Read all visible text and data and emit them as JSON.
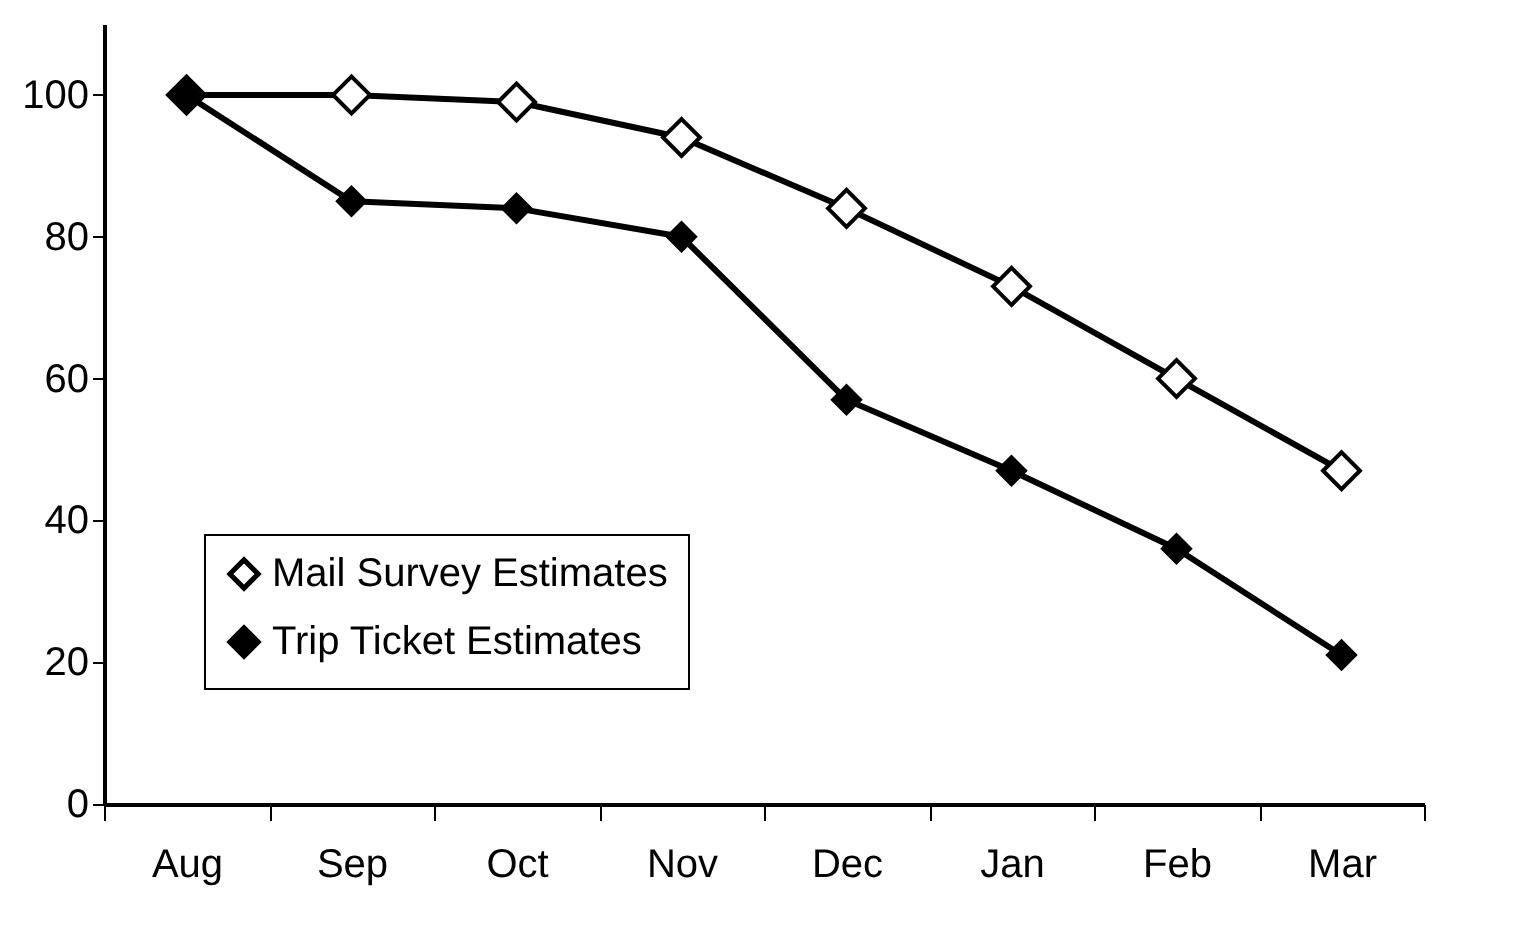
{
  "chart_data": {
    "type": "line",
    "categories": [
      "Aug",
      "Sep",
      "Oct",
      "Nov",
      "Dec",
      "Jan",
      "Feb",
      "Mar"
    ],
    "series": [
      {
        "name": "Mail Survey Estimates",
        "color": "#000000",
        "values": [
          100,
          100,
          99,
          94,
          84,
          73,
          60,
          47
        ]
      },
      {
        "name": "Trip Ticket Estimates",
        "color": "#000000",
        "values": [
          100,
          85,
          84,
          80,
          57,
          47,
          36,
          21
        ]
      }
    ],
    "ylim": [
      0,
      110
    ],
    "yticks": [
      0,
      20,
      40,
      60,
      80,
      100
    ],
    "grid": false,
    "legend": "bottom left",
    "marker": "diamond",
    "line_style": "solid"
  }
}
